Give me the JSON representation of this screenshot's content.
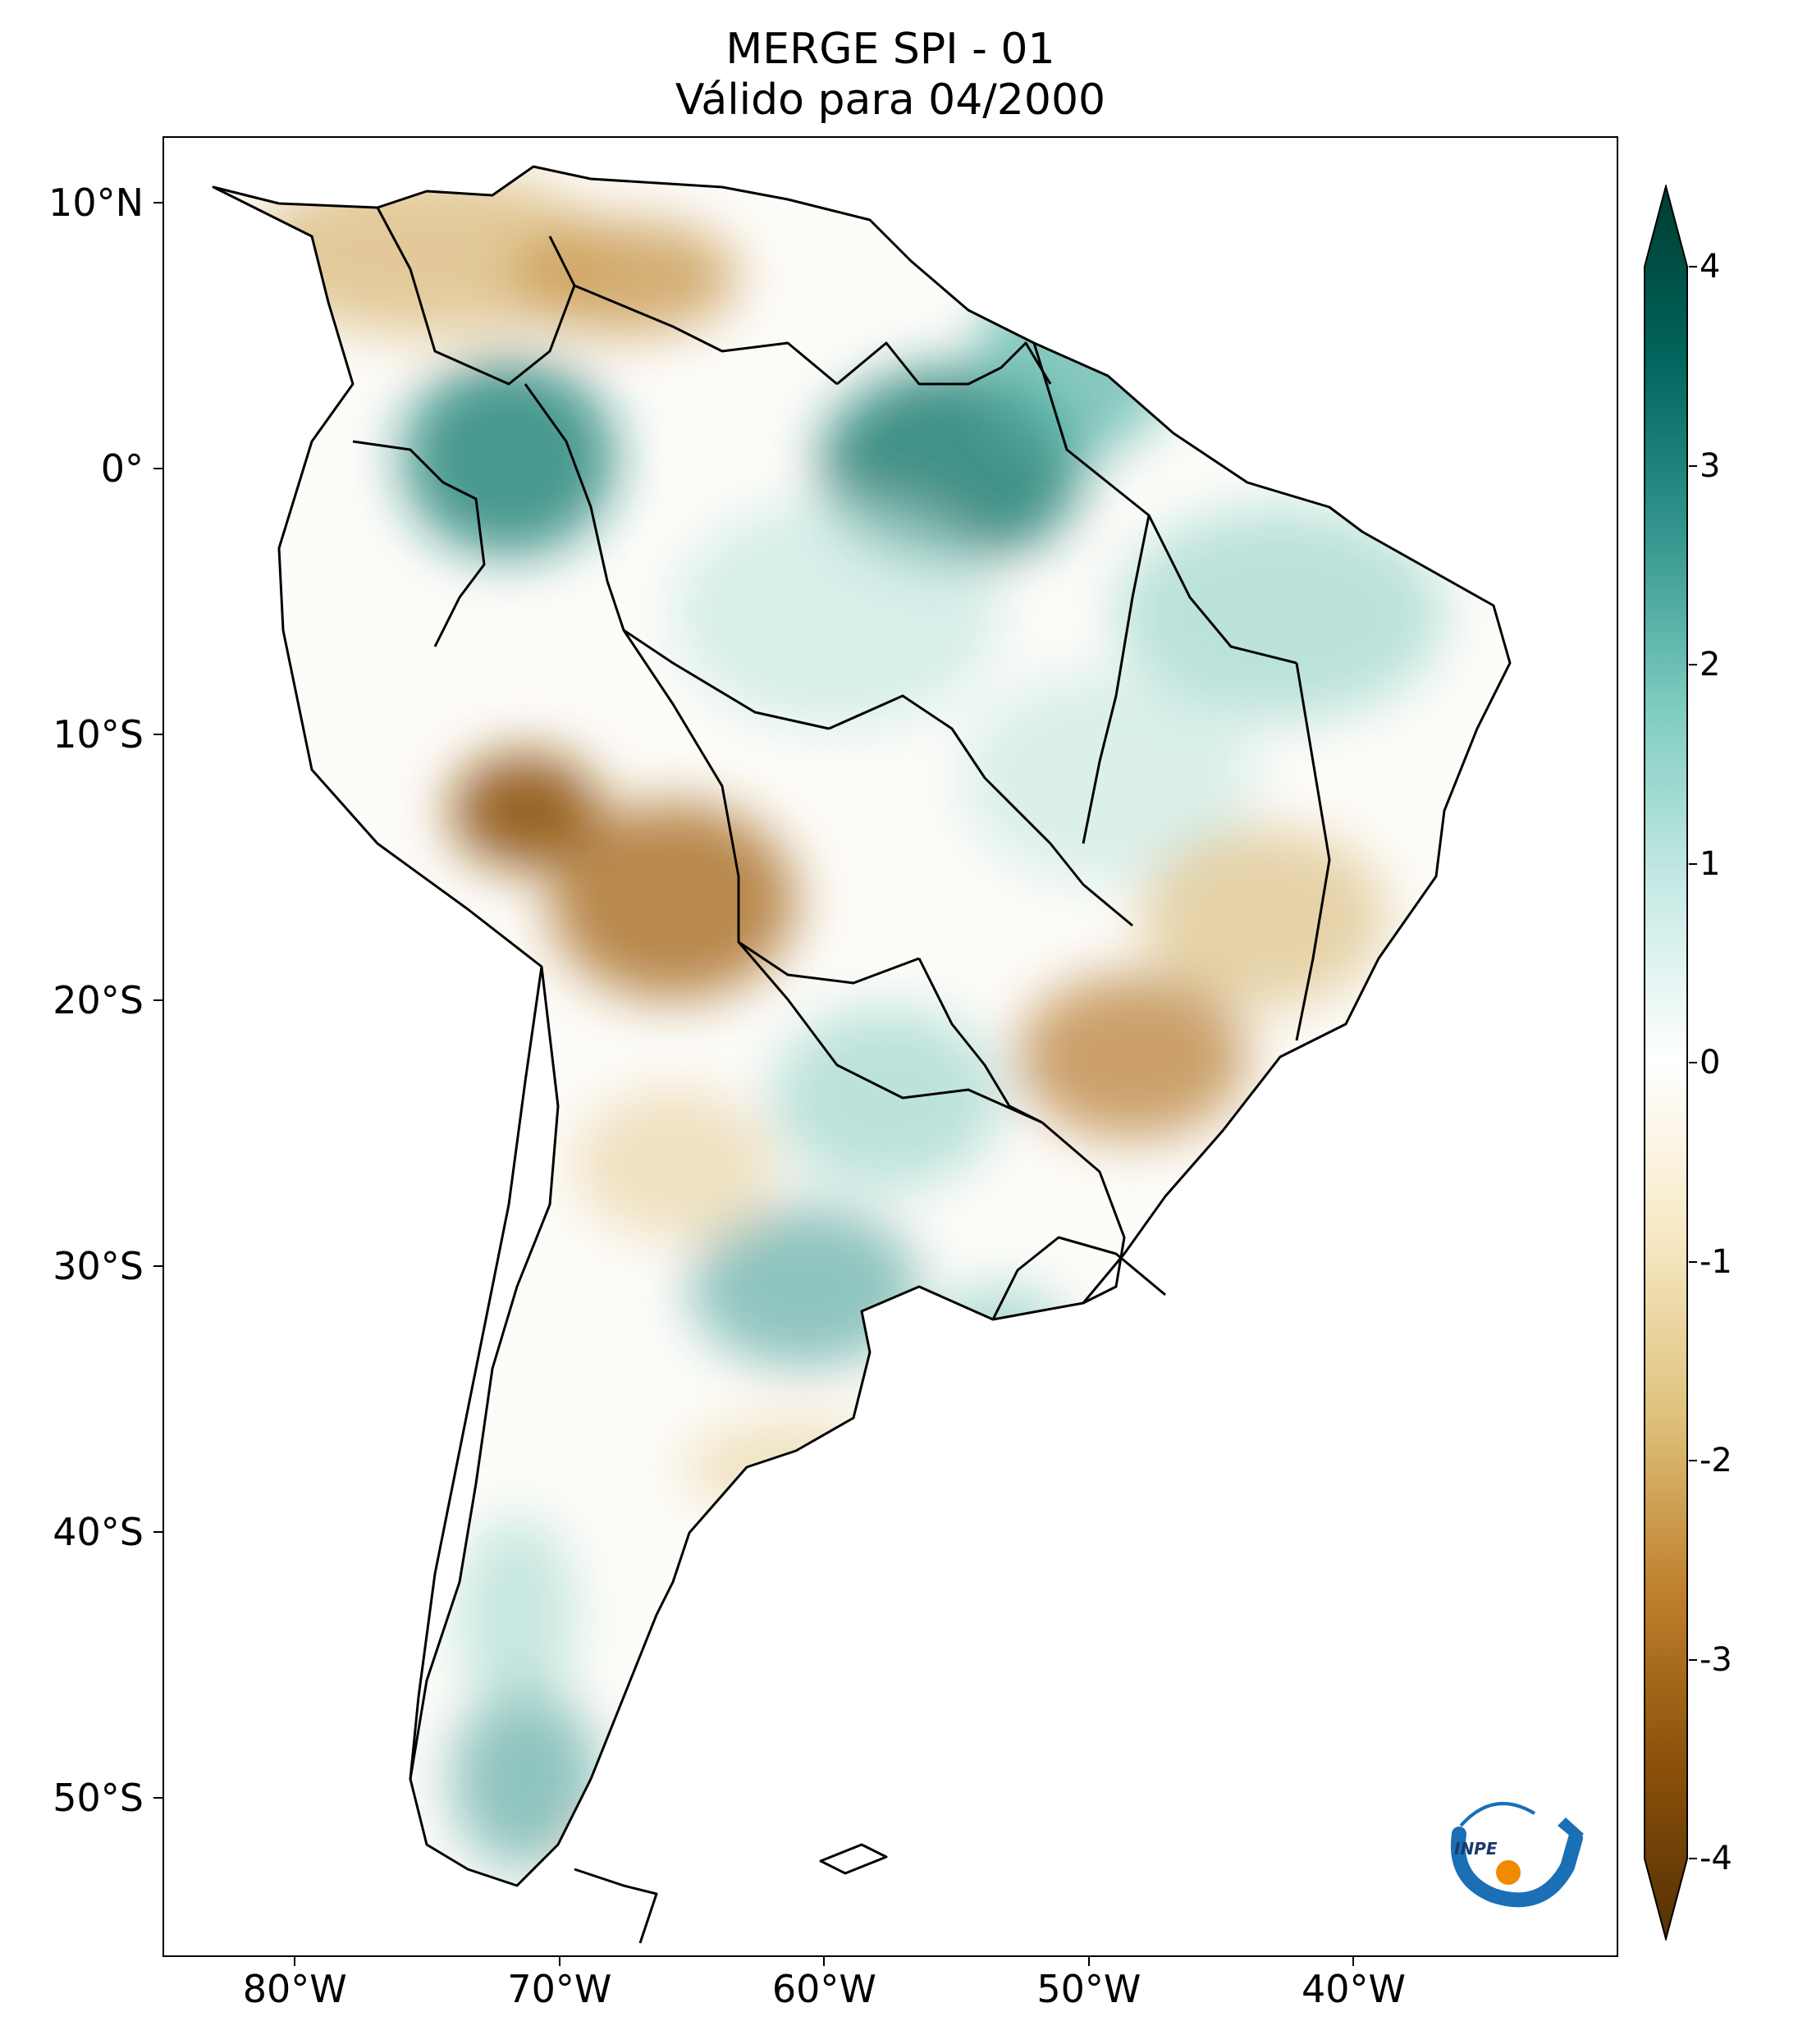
{
  "title": {
    "line1": "MERGE   SPI - 01",
    "line2": "Válido para 04/2000"
  },
  "axes": {
    "lat_labels": [
      "10°N",
      "0°",
      "10°S",
      "20°S",
      "30°S",
      "40°S",
      "50°S"
    ],
    "lat_values": [
      10,
      0,
      -10,
      -20,
      -30,
      -40,
      -50
    ],
    "lon_labels": [
      "80°W",
      "70°W",
      "60°W",
      "50°W",
      "40°W"
    ],
    "lon_values": [
      -80,
      -70,
      -60,
      -50,
      -40
    ],
    "lat_range": [
      -56,
      12.5
    ],
    "lon_range": [
      -85,
      -30
    ]
  },
  "colorbar": {
    "labels": [
      "4",
      "3",
      "2",
      "1",
      "0",
      "-1",
      "-2",
      "-3",
      "-4"
    ],
    "values": [
      4,
      3,
      2,
      1,
      0,
      -1,
      -2,
      -3,
      -4
    ],
    "range": [
      -4,
      4
    ],
    "extend": "both",
    "colormap": "BrBG",
    "colors": {
      "min": "#543005",
      "c1": "#8c510a",
      "c2": "#bf812d",
      "c3": "#dfc27d",
      "c4": "#f6e8c3",
      "mid": "#ffffff",
      "c6": "#c7eae5",
      "c7": "#80cdc1",
      "c8": "#35978f",
      "c9": "#01665e",
      "max": "#003c30"
    }
  },
  "logo": {
    "text": "INPE",
    "icon": "inpe-logo-icon",
    "blue": "#1a6fb5",
    "orange": "#f08a00"
  }
}
